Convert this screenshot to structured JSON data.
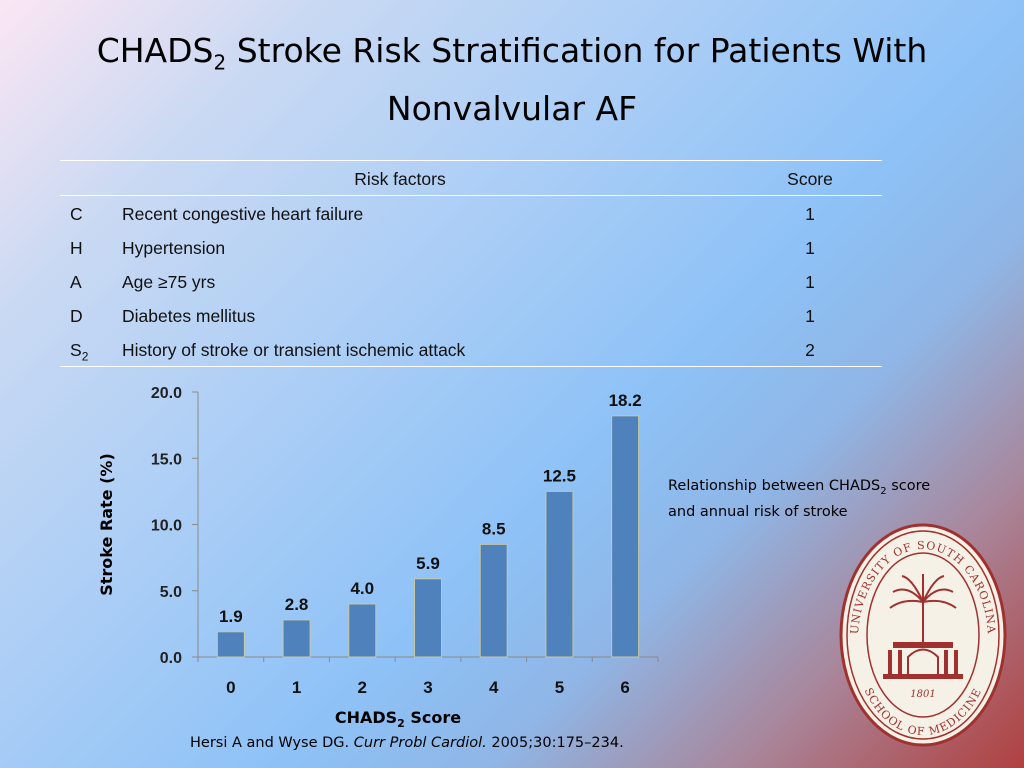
{
  "slide": {
    "title_part1": "CHADS",
    "title_sub": "2",
    "title_part2": " Stroke Risk Stratification  for Patients With Nonvalvular AF"
  },
  "risk_table": {
    "header_factor": "Risk factors",
    "header_score": "Score",
    "rows": [
      {
        "letter": "C",
        "letter_sub": "",
        "factor": "Recent congestive heart failure",
        "score": "1"
      },
      {
        "letter": "H",
        "letter_sub": "",
        "factor": "Hypertension",
        "score": "1"
      },
      {
        "letter": "A",
        "letter_sub": "",
        "factor": "Age ≥75 yrs",
        "score": "1"
      },
      {
        "letter": "D",
        "letter_sub": "",
        "factor": "Diabetes mellitus",
        "score": "1"
      },
      {
        "letter": "S",
        "letter_sub": "2",
        "factor": "History of stroke or transient ischemic attack",
        "score": "2"
      }
    ]
  },
  "chart_data": {
    "type": "bar",
    "categories": [
      "0",
      "1",
      "2",
      "3",
      "4",
      "5",
      "6"
    ],
    "values": [
      1.9,
      2.8,
      4.0,
      5.9,
      8.5,
      12.5,
      18.2
    ],
    "value_labels": [
      "1.9",
      "2.8",
      "4.0",
      "5.9",
      "8.5",
      "12.5",
      "18.2"
    ],
    "ylabel": "Stroke Rate (%)",
    "xlabel_main": "CHADS",
    "xlabel_sub": "2",
    "xlabel_suffix": " Score",
    "ylim": [
      0,
      20
    ],
    "yticks": [
      0,
      5,
      10,
      15,
      20
    ],
    "ytick_labels": [
      "0.0",
      "5.0",
      "10.0",
      "15.0",
      "20.0"
    ],
    "grid": false,
    "bar_color": "#4f81bd"
  },
  "caption": {
    "line1_a": "Relationship between CHADS",
    "line1_sub": "2",
    "line1_b": " score",
    "line2": "and annual risk of stroke"
  },
  "citation": {
    "authors": "Hersi A and Wyse DG. ",
    "journal": "Curr Probl Cardiol.",
    "details": " 2005;30:175–234."
  },
  "seal": {
    "top_text": "UNIVERSITY OF SOUTH CAROLINA",
    "bottom_text": "SCHOOL OF MEDICINE",
    "year": "1801",
    "color": "#a0312f"
  }
}
